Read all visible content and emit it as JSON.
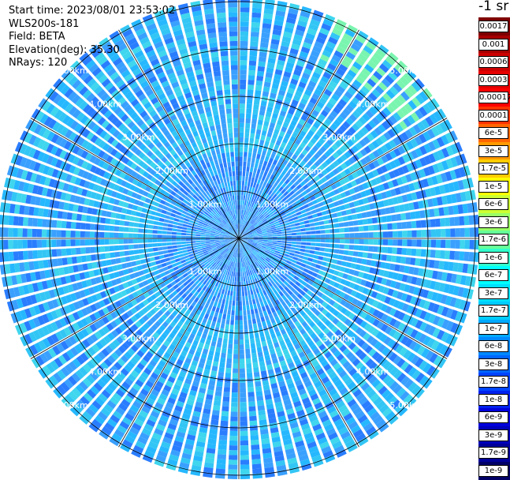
{
  "meta": {
    "start_time": "Start time: 2023/08/01 23:53:02",
    "instrument": "WLS200s-181",
    "field": "Field: BETA",
    "elevation": "Elevation(deg): 35.30",
    "nrays": "NRays: 120"
  },
  "colorbar": {
    "unit": "-1 sr",
    "ticks": [
      "0.0017",
      "0.001",
      "0.0006",
      "0.0003",
      "0.00017",
      "0.0001",
      "6e-5",
      "3e-5",
      "1.7e-5",
      "1e-5",
      "6e-6",
      "3e-6",
      "1.7e-6",
      "1e-6",
      "6e-7",
      "3e-7",
      "1.7e-7",
      "1e-7",
      "6e-8",
      "3e-8",
      "1.7e-8",
      "1e-8",
      "6e-9",
      "3e-9",
      "1.7e-9",
      "1e-9"
    ],
    "colors": [
      "#7f0000",
      "#a50000",
      "#cc0000",
      "#e60000",
      "#ff0000",
      "#ff3300",
      "#ff6600",
      "#ff9900",
      "#ffcc00",
      "#ffff00",
      "#ccff33",
      "#99ff66",
      "#66ff99",
      "#33ffcc",
      "#00ffff",
      "#00e0ff",
      "#00ccff",
      "#00aaff",
      "#0088ff",
      "#0066ff",
      "#0044ff",
      "#0022ee",
      "#0000dd",
      "#0000bb",
      "#000099",
      "#000066"
    ]
  },
  "chart_data": {
    "type": "heatmap",
    "projection": "polar (PPI)",
    "rays": 120,
    "range_rings_km": [
      1,
      2,
      3,
      4,
      5
    ],
    "range_ring_labels": [
      "1.00km",
      "2.00km",
      "3.00km",
      "4.00km",
      "5.00km"
    ],
    "max_range_km": 5.3,
    "spoke_interval_deg": 30,
    "dominant_value_range": [
      "1.7e-8",
      "3e-7"
    ]
  }
}
